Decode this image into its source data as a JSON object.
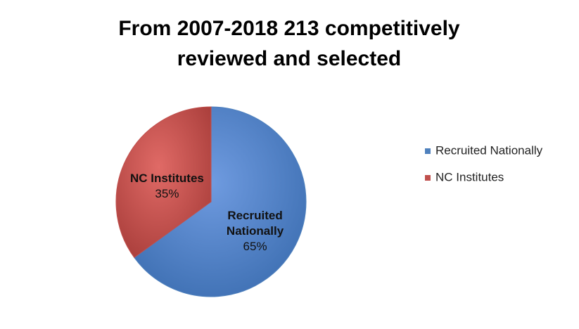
{
  "chart_data": {
    "type": "pie",
    "title": [
      "From 2007-2018 213 competitively",
      "reviewed and selected"
    ],
    "categories": [
      "Recruited Nationally",
      "NC Institutes"
    ],
    "values": [
      65,
      35
    ],
    "value_labels": [
      "65%",
      "35%"
    ],
    "colors": [
      "#4f81bd",
      "#c0504d"
    ],
    "legend": "right"
  }
}
